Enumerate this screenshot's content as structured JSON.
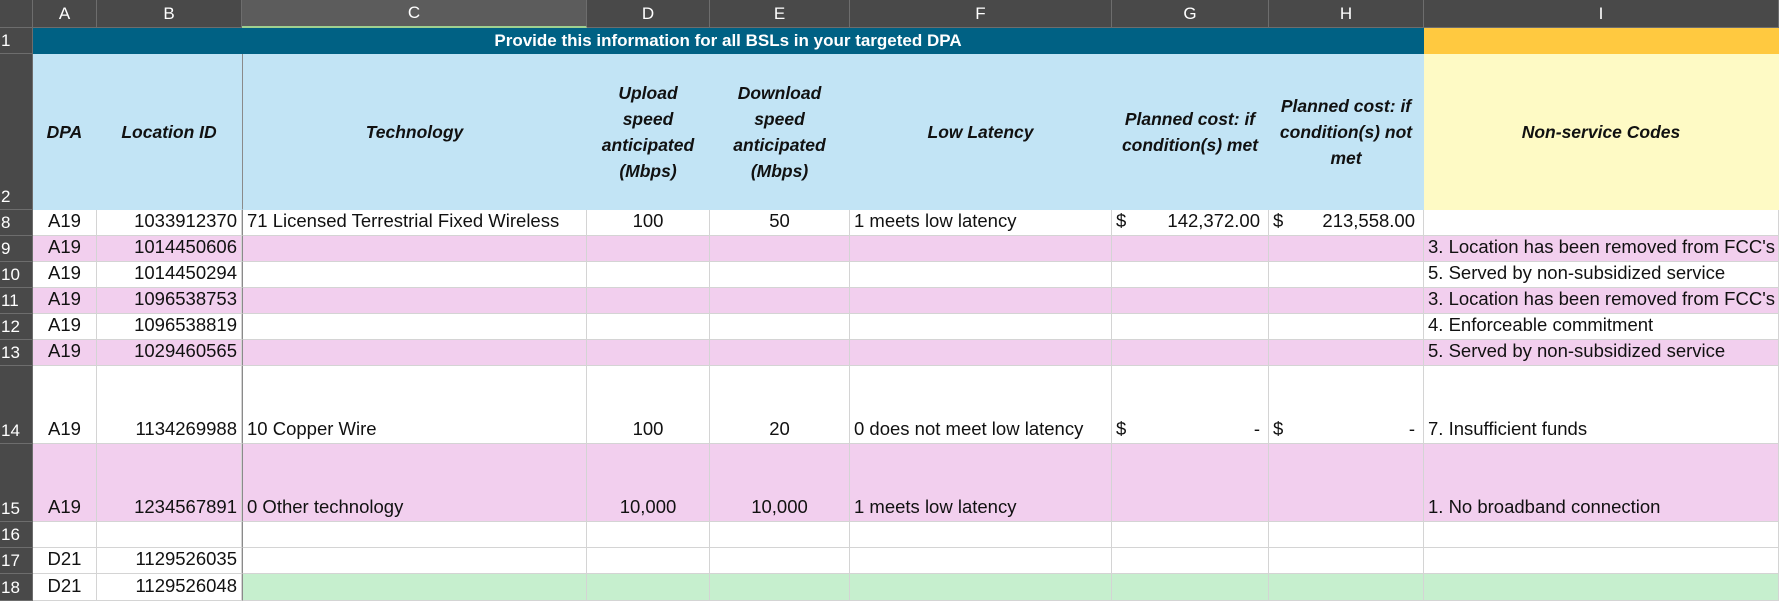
{
  "columns": [
    "A",
    "B",
    "C",
    "D",
    "E",
    "F",
    "G",
    "H",
    "I"
  ],
  "row_numbers": [
    "1",
    "2",
    "8",
    "9",
    "10",
    "11",
    "12",
    "13",
    "14",
    "15",
    "16",
    "17",
    "18"
  ],
  "banner": "Provide this information for all BSLs in your targeted DPA",
  "headers": [
    "DPA",
    "Location ID",
    "Technology",
    "Upload speed anticipated (Mbps)",
    "Download speed anticipated (Mbps)",
    "Low Latency",
    "Planned cost: if condition(s) met",
    "Planned cost: if condition(s) not met",
    "Non-service Codes"
  ],
  "rows": [
    {
      "rn": "8",
      "fill": "white",
      "dpa": "A19",
      "loc": "1033912370",
      "tech": "71 Licensed Terrestrial Fixed Wireless",
      "up": "100",
      "down": "50",
      "lat": "1 meets low latency",
      "g_sym": "$",
      "g_val": "142,372.00",
      "h_sym": "$",
      "h_val": "213,558.00",
      "code": ""
    },
    {
      "rn": "9",
      "fill": "pink",
      "dpa": "A19",
      "loc": "1014450606",
      "tech": "",
      "up": "",
      "down": "",
      "lat": "",
      "g_sym": "",
      "g_val": "",
      "h_sym": "",
      "h_val": "",
      "code": "3. Location has been removed from FCC's"
    },
    {
      "rn": "10",
      "fill": "white",
      "dpa": "A19",
      "loc": "1014450294",
      "tech": "",
      "up": "",
      "down": "",
      "lat": "",
      "g_sym": "",
      "g_val": "",
      "h_sym": "",
      "h_val": "",
      "code": "5. Served by non-subsidized service"
    },
    {
      "rn": "11",
      "fill": "pink",
      "dpa": "A19",
      "loc": "1096538753",
      "tech": "",
      "up": "",
      "down": "",
      "lat": "",
      "g_sym": "",
      "g_val": "",
      "h_sym": "",
      "h_val": "",
      "code": "3. Location has been removed from FCC's"
    },
    {
      "rn": "12",
      "fill": "white",
      "dpa": "A19",
      "loc": "1096538819",
      "tech": "",
      "up": "",
      "down": "",
      "lat": "",
      "g_sym": "",
      "g_val": "",
      "h_sym": "",
      "h_val": "",
      "code": "4. Enforceable commitment"
    },
    {
      "rn": "13",
      "fill": "pink",
      "dpa": "A19",
      "loc": "1029460565",
      "tech": "",
      "up": "",
      "down": "",
      "lat": "",
      "g_sym": "",
      "g_val": "",
      "h_sym": "",
      "h_val": "",
      "code": "5. Served by non-subsidized service"
    },
    {
      "rn": "14",
      "fill": "white",
      "dpa": "A19",
      "loc": "1134269988",
      "tech": "10 Copper Wire",
      "up": "100",
      "down": "20",
      "lat": "0 does not meet low latency",
      "g_sym": "$",
      "g_val": "-",
      "h_sym": "$",
      "h_val": "-",
      "code": "7. Insufficient funds"
    },
    {
      "rn": "15",
      "fill": "pink",
      "dpa": "A19",
      "loc": "1234567891",
      "tech": "0 Other technology",
      "up": "10,000",
      "down": "10,000",
      "lat": "1 meets low latency",
      "g_sym": "",
      "g_val": "",
      "h_sym": "",
      "h_val": "",
      "code": "1. No broadband connection"
    },
    {
      "rn": "16",
      "fill": "white",
      "dpa": "",
      "loc": "",
      "tech": "",
      "up": "",
      "down": "",
      "lat": "",
      "g_sym": "",
      "g_val": "",
      "h_sym": "",
      "h_val": "",
      "code": ""
    },
    {
      "rn": "17",
      "fill": "white",
      "dpa": "D21",
      "loc": "1129526035",
      "tech": "",
      "up": "",
      "down": "",
      "lat": "",
      "g_sym": "",
      "g_val": "",
      "h_sym": "",
      "h_val": "",
      "code": ""
    },
    {
      "rn": "18",
      "fill": "green",
      "dpa": "D21",
      "loc": "1129526048",
      "tech": "",
      "up": "",
      "down": "",
      "lat": "",
      "g_sym": "",
      "g_val": "",
      "h_sym": "",
      "h_val": "",
      "code": ""
    }
  ],
  "colors": {
    "banner": "#006184",
    "banner_codes": "#ffc940",
    "header_fill": "#c2e4f5",
    "header_codes_fill": "#fefac5",
    "pink_row": "#f2cfee",
    "green_row": "#c6efce"
  }
}
